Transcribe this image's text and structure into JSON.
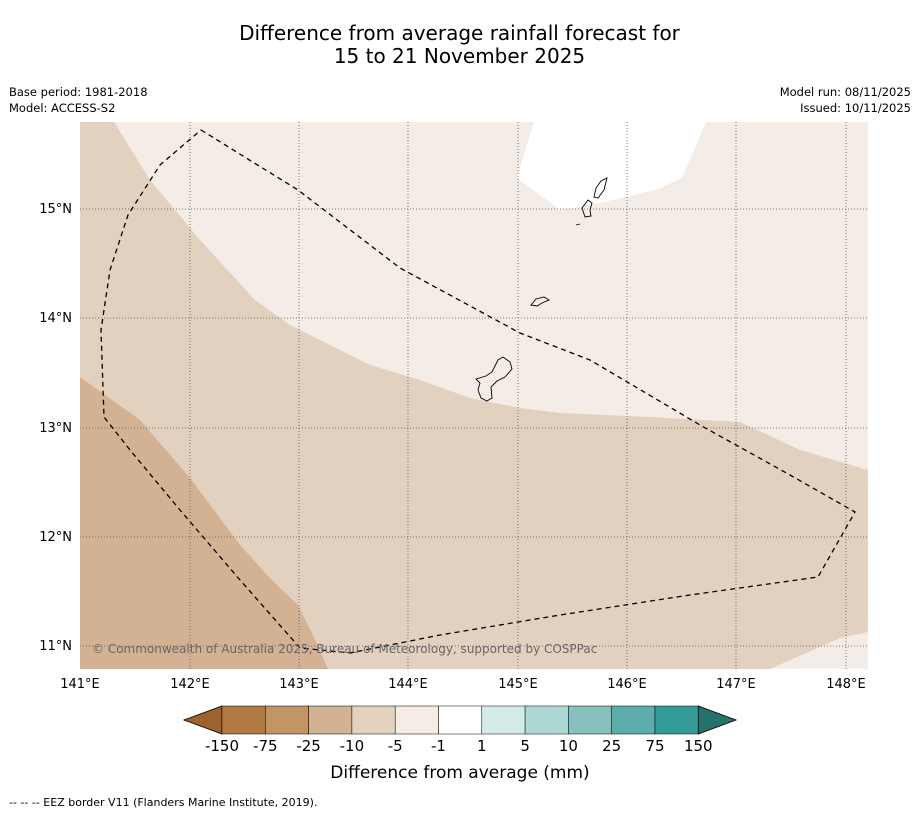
{
  "title": {
    "line1": "Difference from average rainfall forecast for",
    "line2": "15 to 21 November 2025"
  },
  "meta": {
    "base_period": "Base period: 1981-2018",
    "model": "Model: ACCESS-S2",
    "model_run": "Model run: 08/11/2025",
    "issued": "Issued: 10/11/2025"
  },
  "map": {
    "lon_ticks": [
      "141°E",
      "142°E",
      "143°E",
      "144°E",
      "145°E",
      "146°E",
      "147°E",
      "148°E"
    ],
    "lat_ticks": [
      "15°N",
      "14°N",
      "13°N",
      "12°N",
      "11°N"
    ],
    "copyright": "© Commonwealth of Australia 2025, Bureau of Meteorology, supported by COSPPac",
    "grid": true,
    "region_colors": {
      "-25_to_-10": "#d2b293",
      "-10_to_-5": "#e3d1c0",
      "-5_to_-1": "#f4ece6",
      "-1_to_1": "#ffffff"
    }
  },
  "colorbar": {
    "labels": [
      "-150",
      "-75",
      "-25",
      "-10",
      "-5",
      "-1",
      "1",
      "5",
      "10",
      "25",
      "75",
      "150"
    ],
    "colors": [
      "#9e6230",
      "#b27a44",
      "#c39466",
      "#d2b293",
      "#e3d1c0",
      "#f4ece6",
      "#ffffff",
      "#d4ebea",
      "#afd7d4",
      "#86c1c0",
      "#5cadab",
      "#349b98",
      "#26716c"
    ],
    "title": "Difference from average (mm)"
  },
  "footnote": "--  --  -- EEZ border V11 (Flanders Marine Institute, 2019)."
}
